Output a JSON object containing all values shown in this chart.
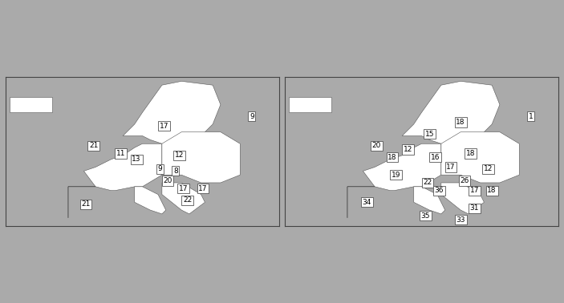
{
  "background_color": "#aaaaaa",
  "land_color": "#ffffff",
  "land_outline_color": "#555555",
  "box_facecolor": "white",
  "box_edgecolor": "#555555",
  "text_color": "black",
  "label_fontsize": 6.5,
  "fig_width": 7.03,
  "fig_height": 3.78,
  "extent_lon": [
    -25,
    45
  ],
  "extent_lat": [
    34,
    72
  ],
  "left_labels": [
    {
      "text": "9",
      "lon": 38.0,
      "lat": 62.0
    },
    {
      "text": "17",
      "lon": 15.5,
      "lat": 59.5
    },
    {
      "text": "21",
      "lon": -2.5,
      "lat": 54.5
    },
    {
      "text": "11",
      "lon": 4.5,
      "lat": 52.5
    },
    {
      "text": "13",
      "lon": 8.5,
      "lat": 51.0
    },
    {
      "text": "12",
      "lon": 19.5,
      "lat": 52.0
    },
    {
      "text": "9",
      "lon": 14.5,
      "lat": 48.5
    },
    {
      "text": "8",
      "lon": 18.5,
      "lat": 48.0
    },
    {
      "text": "20",
      "lon": 16.5,
      "lat": 45.5
    },
    {
      "text": "17",
      "lon": 20.5,
      "lat": 43.5
    },
    {
      "text": "17",
      "lon": 25.5,
      "lat": 43.5
    },
    {
      "text": "22",
      "lon": 21.5,
      "lat": 40.5
    },
    {
      "text": "21",
      "lon": -4.5,
      "lat": 39.5
    }
  ],
  "right_labels": [
    {
      "text": "1",
      "lon": 38.0,
      "lat": 62.0
    },
    {
      "text": "18",
      "lon": 20.0,
      "lat": 60.5
    },
    {
      "text": "15",
      "lon": 12.0,
      "lat": 57.5
    },
    {
      "text": "20",
      "lon": -1.5,
      "lat": 54.5
    },
    {
      "text": "12",
      "lon": 6.5,
      "lat": 53.5
    },
    {
      "text": "18",
      "lon": 2.5,
      "lat": 51.5
    },
    {
      "text": "16",
      "lon": 13.5,
      "lat": 51.5
    },
    {
      "text": "18",
      "lon": 22.5,
      "lat": 52.5
    },
    {
      "text": "17",
      "lon": 17.5,
      "lat": 49.0
    },
    {
      "text": "12",
      "lon": 27.0,
      "lat": 48.5
    },
    {
      "text": "19",
      "lon": 3.5,
      "lat": 47.0
    },
    {
      "text": "22",
      "lon": 11.5,
      "lat": 45.0
    },
    {
      "text": "26",
      "lon": 21.0,
      "lat": 45.5
    },
    {
      "text": "17",
      "lon": 23.5,
      "lat": 43.0
    },
    {
      "text": "18",
      "lon": 28.0,
      "lat": 43.0
    },
    {
      "text": "36",
      "lon": 14.5,
      "lat": 43.0
    },
    {
      "text": "31",
      "lon": 23.5,
      "lat": 38.5
    },
    {
      "text": "34",
      "lon": -4.0,
      "lat": 40.0
    },
    {
      "text": "35",
      "lon": 11.0,
      "lat": 36.5
    },
    {
      "text": "33",
      "lon": 20.0,
      "lat": 35.5
    }
  ]
}
